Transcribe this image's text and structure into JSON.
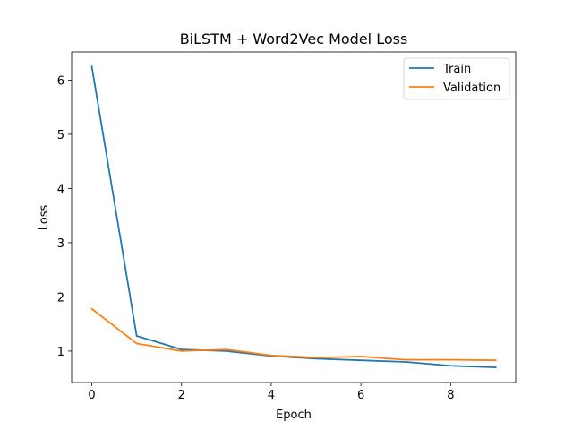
{
  "chart_data": {
    "type": "line",
    "title": "BiLSTM + Word2Vec Model Loss",
    "xlabel": "Epoch",
    "ylabel": "Loss",
    "x": [
      0,
      1,
      2,
      3,
      4,
      5,
      6,
      7,
      8,
      9
    ],
    "xlim": [
      -0.45,
      9.45
    ],
    "ylim": [
      0.42,
      6.52
    ],
    "xticks": [
      0,
      2,
      4,
      6,
      8
    ],
    "yticks": [
      1,
      2,
      3,
      4,
      5,
      6
    ],
    "grid": false,
    "legend_position": "top-right",
    "series": [
      {
        "name": "Train",
        "color": "#1f77b4",
        "values": [
          6.25,
          1.28,
          1.03,
          1.0,
          0.91,
          0.86,
          0.83,
          0.8,
          0.73,
          0.7
        ]
      },
      {
        "name": "Validation",
        "color": "#ff7f0e",
        "values": [
          1.78,
          1.14,
          1.0,
          1.03,
          0.92,
          0.88,
          0.9,
          0.84,
          0.84,
          0.83
        ]
      }
    ]
  }
}
